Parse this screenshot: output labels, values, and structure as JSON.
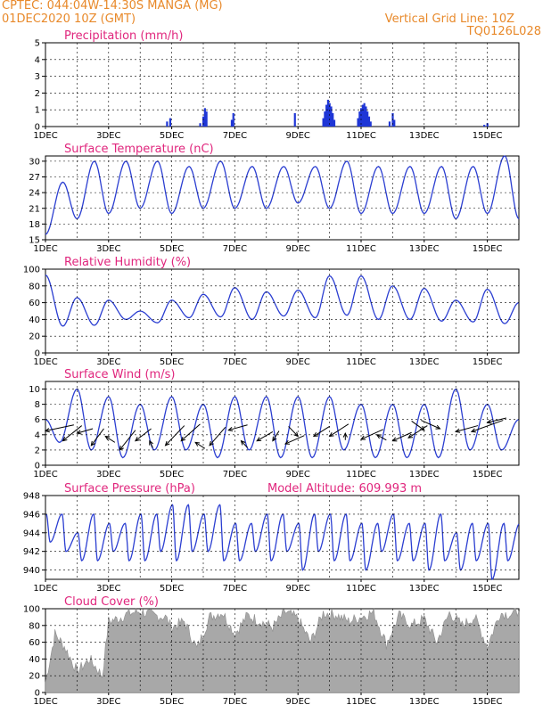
{
  "header": {
    "station": "CPTEC:   044:04W-14:30S   MANGA (MG)",
    "date": "01DEC2020 10Z (GMT)",
    "grid_note": "Vertical Grid Line: 10Z",
    "code": "TQ0126L028",
    "model_altitude": "Model Altitude: 609.993 m"
  },
  "colors": {
    "line": "#2b3ed1",
    "bar": "#1f36d6",
    "cloud": "#a8a8a8",
    "title": "#e0267d",
    "header": "#e8892a"
  },
  "x_ticks": [
    "1DEC",
    "3DEC",
    "5DEC",
    "7DEC",
    "9DEC",
    "11DEC",
    "13DEC",
    "15DEC"
  ],
  "chart_data": [
    {
      "type": "bar",
      "title": "Precipitation (mm/h)",
      "ylim": [
        0,
        5
      ],
      "yticks": [
        0,
        1,
        2,
        3,
        4,
        5
      ],
      "x_days": [
        4.85,
        4.95,
        5.9,
        6.0,
        6.05,
        6.1,
        6.9,
        6.95,
        8.9,
        9.8,
        9.85,
        9.9,
        9.95,
        10.0,
        10.05,
        10.1,
        10.15,
        10.9,
        10.95,
        11.0,
        11.05,
        11.1,
        11.15,
        11.2,
        11.25,
        11.3,
        11.9,
        12.0,
        12.05,
        14.9,
        15.0
      ],
      "values": [
        0.3,
        0.5,
        0.2,
        0.6,
        1.1,
        0.9,
        0.4,
        0.8,
        0.8,
        0.5,
        0.9,
        1.3,
        1.6,
        1.4,
        1.2,
        0.8,
        0.4,
        0.5,
        0.9,
        1.1,
        1.3,
        1.4,
        1.2,
        0.9,
        0.6,
        0.3,
        0.3,
        0.8,
        0.4,
        0.1,
        0.2
      ]
    },
    {
      "type": "line",
      "title": "Surface Temperature (nC)",
      "ylim": [
        15,
        31
      ],
      "yticks": [
        15,
        18,
        21,
        24,
        27,
        30
      ],
      "period_days": 1,
      "min_day_offset": 0.0,
      "max_day_offset": 0.55,
      "daily_max": [
        26,
        30,
        30,
        30,
        29,
        30,
        29,
        29,
        29,
        30,
        29,
        29,
        29,
        29,
        31
      ],
      "daily_min": [
        16,
        19,
        20,
        21,
        20,
        21,
        21,
        21,
        22,
        21,
        20,
        20,
        20,
        19,
        20,
        19
      ]
    },
    {
      "type": "line",
      "title": "Relative Humidity (%)",
      "ylim": [
        0,
        100
      ],
      "yticks": [
        0,
        20,
        40,
        60,
        80,
        100
      ],
      "period_days": 1,
      "min_day_offset": 0.55,
      "max_day_offset": 0.0,
      "daily_max": [
        93,
        66,
        63,
        50,
        63,
        70,
        78,
        73,
        75,
        92,
        92,
        80,
        77,
        63,
        76,
        60
      ],
      "daily_min": [
        32,
        33,
        40,
        36,
        42,
        43,
        40,
        44,
        42,
        45,
        40,
        40,
        38,
        37,
        35
      ]
    },
    {
      "type": "line",
      "title": "Surface Wind (m/s)",
      "ylim": [
        0,
        11
      ],
      "yticks": [
        0,
        2,
        4,
        6,
        8,
        10
      ],
      "period_days": 1,
      "min_day_offset": 0.45,
      "max_day_offset": 0.0,
      "daily_max": [
        6,
        10,
        9,
        8,
        9,
        8,
        9,
        9,
        9,
        9,
        8,
        8,
        8,
        10,
        8,
        6
      ],
      "daily_min": [
        3,
        2,
        1,
        2,
        2,
        1,
        2,
        1,
        1,
        2,
        1,
        1,
        1,
        2,
        2
      ],
      "vectors": [
        {
          "day": 1.0,
          "y": 4.5,
          "dx": 0.9,
          "dy": 0.8
        },
        {
          "day": 1.55,
          "y": 3.2,
          "dx": 0.6,
          "dy": 2.0
        },
        {
          "day": 2.0,
          "y": 4.2,
          "dx": 0.5,
          "dy": 0.6
        },
        {
          "day": 2.45,
          "y": 2.6,
          "dx": 0.4,
          "dy": 2.2
        },
        {
          "day": 2.9,
          "y": 3.8,
          "dx": 0.3,
          "dy": -0.8
        },
        {
          "day": 3.35,
          "y": 2.0,
          "dx": 0.5,
          "dy": 2.6
        },
        {
          "day": 3.85,
          "y": 3.2,
          "dx": 0.5,
          "dy": 1.6
        },
        {
          "day": 4.3,
          "y": 3.2,
          "dx": 0.1,
          "dy": -0.9
        },
        {
          "day": 4.8,
          "y": 2.6,
          "dx": 0.6,
          "dy": 2.6
        },
        {
          "day": 5.3,
          "y": 3.2,
          "dx": 0.6,
          "dy": 2.2
        },
        {
          "day": 5.75,
          "y": 3.0,
          "dx": 0.3,
          "dy": -0.8
        },
        {
          "day": 6.2,
          "y": 2.6,
          "dx": 0.5,
          "dy": 2.4
        },
        {
          "day": 6.8,
          "y": 4.6,
          "dx": 0.6,
          "dy": 0.7
        },
        {
          "day": 7.2,
          "y": 3.2,
          "dx": 0.2,
          "dy": -0.9
        },
        {
          "day": 7.7,
          "y": 3.2,
          "dx": 0.5,
          "dy": 1.2
        },
        {
          "day": 8.2,
          "y": 3.2,
          "dx": 0.2,
          "dy": 1.3
        },
        {
          "day": 8.6,
          "y": 2.8,
          "dx": 0.6,
          "dy": 1.1
        },
        {
          "day": 9.0,
          "y": 3.8,
          "dx": -0.3,
          "dy": 1.3
        },
        {
          "day": 9.5,
          "y": 3.8,
          "dx": 0.5,
          "dy": 1.3
        },
        {
          "day": 10.0,
          "y": 3.8,
          "dx": 0.6,
          "dy": 1.6
        },
        {
          "day": 10.5,
          "y": 4.2,
          "dx": 0.0,
          "dy": -0.9
        },
        {
          "day": 11.0,
          "y": 3.4,
          "dx": 0.7,
          "dy": 1.3
        },
        {
          "day": 11.5,
          "y": 4.0,
          "dx": 0.3,
          "dy": -0.7
        },
        {
          "day": 12.0,
          "y": 3.2,
          "dx": 0.6,
          "dy": 1.1
        },
        {
          "day": 12.5,
          "y": 3.6,
          "dx": 0.6,
          "dy": 1.6
        },
        {
          "day": 13.0,
          "y": 4.6,
          "dx": -0.4,
          "dy": 1.2
        },
        {
          "day": 13.5,
          "y": 4.8,
          "dx": -0.6,
          "dy": 1.1
        },
        {
          "day": 14.0,
          "y": 4.4,
          "dx": 0.7,
          "dy": 0.8
        },
        {
          "day": 14.5,
          "y": 4.4,
          "dx": 1.0,
          "dy": 1.5
        },
        {
          "day": 15.0,
          "y": 5.6,
          "dx": 0.6,
          "dy": 0.6
        }
      ]
    },
    {
      "type": "line",
      "title": "Surface Pressure (hPa)",
      "ylim": [
        939,
        948
      ],
      "yticks": [
        940,
        942,
        944,
        946,
        948
      ],
      "period_days": 0.5,
      "min_day_offset": 0.3,
      "max_day_offset": 0.05,
      "daily_max": [
        946,
        946,
        944,
        946,
        945,
        945,
        946,
        946,
        947,
        947,
        946,
        947,
        945,
        945,
        946,
        946,
        945,
        946,
        946,
        946,
        945,
        945,
        946,
        945,
        945,
        946,
        944,
        945,
        945,
        945,
        945
      ],
      "daily_min": [
        943,
        942,
        941,
        941,
        942,
        941,
        941,
        942,
        941,
        942,
        942,
        941,
        941,
        942,
        941,
        942,
        940,
        942,
        941,
        941,
        940,
        942,
        941,
        941,
        940,
        941,
        940,
        941,
        939,
        941,
        939
      ]
    },
    {
      "type": "area",
      "title": "Cloud Cover (%)",
      "ylim": [
        0,
        100
      ],
      "yticks": [
        0,
        20,
        40,
        60,
        80,
        100
      ],
      "days": [
        1.0,
        1.3,
        1.6,
        2.0,
        2.4,
        2.8,
        3.0,
        3.3,
        3.6,
        4.0,
        4.4,
        4.8,
        5.0,
        5.4,
        5.8,
        6.2,
        6.6,
        7.0,
        7.4,
        7.8,
        8.2,
        8.6,
        9.0,
        9.4,
        9.8,
        10.2,
        10.6,
        11.0,
        11.4,
        11.8,
        12.2,
        12.6,
        13.0,
        13.4,
        13.8,
        14.2,
        14.6,
        15.0,
        15.4,
        15.8,
        16.0
      ],
      "values": [
        12,
        70,
        55,
        25,
        40,
        20,
        85,
        88,
        94,
        97,
        92,
        90,
        78,
        85,
        52,
        90,
        96,
        70,
        92,
        85,
        78,
        96,
        88,
        60,
        95,
        93,
        85,
        90,
        96,
        58,
        92,
        80,
        88,
        60,
        95,
        80,
        90,
        55,
        95,
        93,
        97
      ]
    }
  ]
}
